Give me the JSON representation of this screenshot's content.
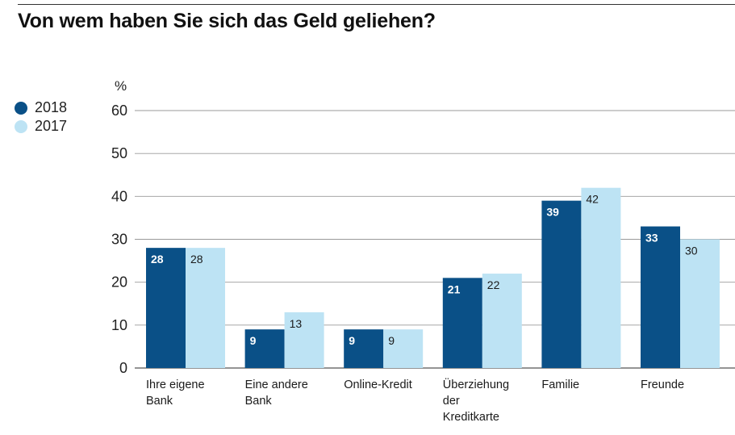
{
  "chart_data": {
    "type": "bar",
    "title": "Von wem haben Sie sich das Geld geliehen?",
    "ylabel": "%",
    "ylim": [
      0,
      60
    ],
    "yticks": [
      0,
      10,
      20,
      30,
      40,
      50,
      60
    ],
    "grid": true,
    "legend_position": "left",
    "categories": [
      [
        "Ihre eigene",
        "Bank"
      ],
      [
        "Eine andere",
        "Bank"
      ],
      [
        "Online-Kredit"
      ],
      [
        "Überziehung",
        "der",
        "Kreditkarte"
      ],
      [
        "Familie"
      ],
      [
        "Freunde"
      ]
    ],
    "series": [
      {
        "name": "2018",
        "color": "#0a5087",
        "values": [
          28,
          9,
          9,
          21,
          39,
          33
        ]
      },
      {
        "name": "2017",
        "color": "#bde3f4",
        "values": [
          28,
          13,
          9,
          22,
          42,
          30
        ]
      }
    ]
  }
}
